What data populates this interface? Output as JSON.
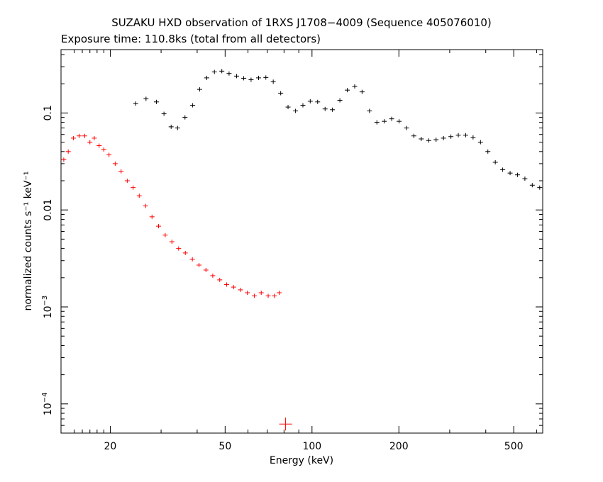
{
  "title": "SUZAKU HXD observation of 1RXS J1708−4009 (Sequence 405076010)",
  "subtitle": "Exposure time: 110.8ks (total from all detectors)",
  "colors": {
    "series_pin": "#ff0000",
    "series_gso": "#000000",
    "axes": "#000000"
  },
  "chart_data": {
    "type": "scatter",
    "title": "SUZAKU HXD observation of 1RXS J1708−4009 (Sequence 405076010)",
    "subtitle": "Exposure time: 110.8ks (total from all detectors)",
    "xlabel": "Energy (keV)",
    "ylabel": "normalized counts s⁻¹ keV⁻¹",
    "xscale": "log",
    "yscale": "log",
    "xlim": [
      13.5,
      630
    ],
    "ylim": [
      5e-05,
      0.45
    ],
    "grid": false,
    "x_ticks": [
      {
        "value": 20,
        "label": "20"
      },
      {
        "value": 50,
        "label": "50"
      },
      {
        "value": 100,
        "label": "100"
      },
      {
        "value": 200,
        "label": "200"
      },
      {
        "value": 500,
        "label": "500"
      }
    ],
    "y_ticks": [
      {
        "value": 0.0001,
        "label": "10",
        "exp": "−4"
      },
      {
        "value": 0.001,
        "label": "10",
        "exp": "−3"
      },
      {
        "value": 0.01,
        "label": "0.01",
        "exp": ""
      },
      {
        "value": 0.1,
        "label": "0.1",
        "exp": ""
      }
    ],
    "series": [
      {
        "color": "#ff0000",
        "points": [
          [
            13.8,
            0.033
          ],
          [
            14.3,
            0.04
          ],
          [
            14.9,
            0.055
          ],
          [
            15.6,
            0.058
          ],
          [
            16.3,
            0.058
          ],
          [
            17.0,
            0.05
          ],
          [
            17.6,
            0.055
          ],
          [
            18.3,
            0.046
          ],
          [
            19.0,
            0.042
          ],
          [
            19.8,
            0.037
          ],
          [
            20.8,
            0.03
          ],
          [
            21.8,
            0.025
          ],
          [
            22.9,
            0.02
          ],
          [
            24.0,
            0.017
          ],
          [
            25.2,
            0.014
          ],
          [
            26.5,
            0.011
          ],
          [
            27.9,
            0.0085
          ],
          [
            29.4,
            0.0068
          ],
          [
            31.0,
            0.0055
          ],
          [
            32.7,
            0.0047
          ],
          [
            34.5,
            0.004
          ],
          [
            36.4,
            0.0036
          ],
          [
            38.5,
            0.0031
          ],
          [
            40.6,
            0.0027
          ],
          [
            42.9,
            0.0024
          ],
          [
            45.3,
            0.0021
          ],
          [
            47.9,
            0.0019
          ],
          [
            50.6,
            0.0017
          ],
          [
            53.5,
            0.0016
          ],
          [
            56.5,
            0.0015
          ],
          [
            59.7,
            0.0014
          ],
          [
            63.1,
            0.0013
          ],
          [
            66.7,
            0.0014
          ],
          [
            70.5,
            0.0013
          ],
          [
            74.0,
            0.0013
          ],
          [
            77.0,
            0.0014
          ]
        ]
      },
      {
        "color": "#ff0000",
        "points": [
          [
            81.0,
            6.2e-05
          ]
        ]
      },
      {
        "color": "#000000",
        "points": [
          [
            24.5,
            0.125
          ],
          [
            26.6,
            0.14
          ],
          [
            28.9,
            0.13
          ],
          [
            30.7,
            0.098
          ],
          [
            32.5,
            0.072
          ],
          [
            34.2,
            0.07
          ],
          [
            36.3,
            0.09
          ],
          [
            38.6,
            0.12
          ],
          [
            40.8,
            0.175
          ],
          [
            43.2,
            0.23
          ],
          [
            45.9,
            0.265
          ],
          [
            48.7,
            0.27
          ],
          [
            51.6,
            0.255
          ],
          [
            54.8,
            0.24
          ],
          [
            58.0,
            0.228
          ],
          [
            61.5,
            0.22
          ],
          [
            65.3,
            0.23
          ],
          [
            69.2,
            0.232
          ],
          [
            73.4,
            0.21
          ],
          [
            77.9,
            0.16
          ],
          [
            82.6,
            0.115
          ],
          [
            87.7,
            0.105
          ],
          [
            93.0,
            0.12
          ],
          [
            98.6,
            0.132
          ],
          [
            104.6,
            0.13
          ],
          [
            111.0,
            0.11
          ],
          [
            117.7,
            0.108
          ],
          [
            124.9,
            0.135
          ],
          [
            132.5,
            0.172
          ],
          [
            140.6,
            0.188
          ],
          [
            149.1,
            0.165
          ],
          [
            158.2,
            0.105
          ],
          [
            167.8,
            0.08
          ],
          [
            178.0,
            0.082
          ],
          [
            188.8,
            0.087
          ],
          [
            200.3,
            0.082
          ],
          [
            212.5,
            0.07
          ],
          [
            225.4,
            0.058
          ],
          [
            239.1,
            0.054
          ],
          [
            253.7,
            0.052
          ],
          [
            269.1,
            0.053
          ],
          [
            285.5,
            0.055
          ],
          [
            302.9,
            0.057
          ],
          [
            321.3,
            0.059
          ],
          [
            340.8,
            0.059
          ],
          [
            361.5,
            0.056
          ],
          [
            383.5,
            0.05
          ],
          [
            406.8,
            0.04
          ],
          [
            431.6,
            0.031
          ],
          [
            457.8,
            0.026
          ],
          [
            485.7,
            0.024
          ],
          [
            515.2,
            0.023
          ],
          [
            546.6,
            0.021
          ],
          [
            579.8,
            0.018
          ],
          [
            615.1,
            0.017
          ]
        ]
      }
    ]
  }
}
